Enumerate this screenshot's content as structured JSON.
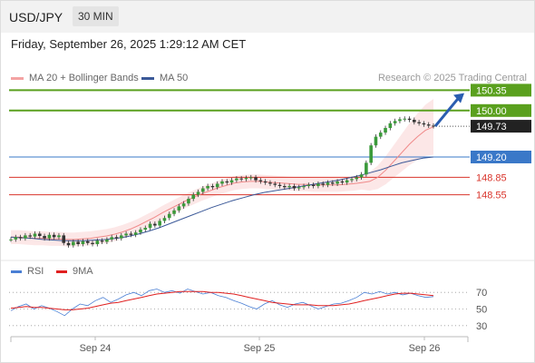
{
  "header": {
    "symbol": "USD/JPY",
    "timeframe": "30 MIN"
  },
  "datetime": "Friday, September 26, 2025 1:29:12 AM CET",
  "legend": {
    "ma20": "MA 20 + Bollinger Bands",
    "ma50": "MA 50"
  },
  "credit": "Research © 2025 Trading Central",
  "rsi_legend": {
    "rsi": "RSI",
    "ma": "9MA"
  },
  "colors": {
    "resistance": "#5aa01e",
    "current": "#222222",
    "pivot": "#3a78c8",
    "support": "#d9342b",
    "ma20": "#f08a8a",
    "ma50": "#3b5998",
    "rsi": "#4a7fd4",
    "rsi_ma": "#e02020",
    "arrow": "#2a5db0"
  },
  "chart_data": [
    {
      "type": "candlestick",
      "title": "USD/JPY",
      "timeframe": "30 MIN",
      "ylim": [
        147.45,
        150.45
      ],
      "x_ticks": [
        "Sep 24",
        "Sep 25",
        "Sep 26"
      ],
      "levels": [
        {
          "value": 150.35,
          "label": "150.35",
          "kind": "resistance"
        },
        {
          "value": 150.0,
          "label": "150.00",
          "kind": "resistance"
        },
        {
          "value": 149.73,
          "label": "149.73",
          "kind": "current"
        },
        {
          "value": 149.2,
          "label": "149.20",
          "kind": "pivot"
        },
        {
          "value": 148.85,
          "label": "148.85",
          "kind": "support"
        },
        {
          "value": 148.55,
          "label": "148.55",
          "kind": "support"
        }
      ],
      "series": [
        {
          "name": "MA 20 + Bollinger Bands"
        },
        {
          "name": "MA 50"
        }
      ],
      "closes": [
        147.78,
        147.82,
        147.8,
        147.85,
        147.83,
        147.88,
        147.84,
        147.8,
        147.86,
        147.82,
        147.85,
        147.72,
        147.68,
        147.74,
        147.7,
        147.75,
        147.72,
        147.7,
        147.76,
        147.74,
        147.78,
        147.82,
        147.8,
        147.85,
        147.88,
        147.86,
        147.9,
        147.95,
        147.98,
        148.05,
        148.02,
        148.1,
        148.15,
        148.22,
        148.28,
        148.35,
        148.4,
        148.48,
        148.55,
        148.6,
        148.66,
        148.7,
        148.68,
        148.74,
        148.78,
        148.76,
        148.8,
        148.83,
        148.82,
        148.84,
        148.85,
        148.8,
        148.78,
        148.76,
        148.74,
        148.72,
        148.7,
        148.68,
        148.7,
        148.66,
        148.68,
        148.7,
        148.72,
        148.7,
        148.74,
        148.72,
        148.76,
        148.74,
        148.78,
        148.76,
        148.8,
        148.82,
        148.85,
        148.9,
        149.1,
        149.4,
        149.55,
        149.62,
        149.7,
        149.78,
        149.82,
        149.85,
        149.86,
        149.84,
        149.8,
        149.78,
        149.76,
        149.74,
        149.73
      ],
      "ma20": [
        147.82,
        147.82,
        147.81,
        147.8,
        147.8,
        147.79,
        147.79,
        147.78,
        147.78,
        147.79,
        147.8,
        147.82,
        147.84,
        147.87,
        147.91,
        147.96,
        148.02,
        148.09,
        148.16,
        148.24,
        148.31,
        148.38,
        148.45,
        148.51,
        148.57,
        148.62,
        148.67,
        148.71,
        148.75,
        148.77,
        148.78,
        148.78,
        148.77,
        148.76,
        148.75,
        148.74,
        148.73,
        148.73,
        148.72,
        148.72,
        148.72,
        148.72,
        148.73,
        148.74,
        148.76,
        148.78,
        148.85,
        148.97,
        149.12,
        149.27,
        149.42,
        149.55,
        149.66,
        149.72
      ],
      "ma50": [
        147.82,
        147.81,
        147.8,
        147.78,
        147.77,
        147.76,
        147.76,
        147.76,
        147.77,
        147.78,
        147.8,
        147.83,
        147.87,
        147.92,
        147.98,
        148.05,
        148.12,
        148.19,
        148.26,
        148.33,
        148.39,
        148.45,
        148.5,
        148.55,
        148.59,
        148.62,
        148.65,
        148.68,
        148.71,
        148.74,
        148.77,
        148.8,
        148.84,
        148.88,
        148.93,
        148.98,
        149.04,
        149.1,
        149.14,
        149.18,
        149.2
      ]
    },
    {
      "type": "line",
      "title": "RSI",
      "ylim": [
        20,
        80
      ],
      "y_ticks": [
        70,
        50,
        30
      ],
      "series": [
        {
          "name": "RSI",
          "values": [
            48,
            53,
            56,
            50,
            54,
            51,
            47,
            42,
            50,
            56,
            54,
            60,
            64,
            58,
            62,
            67,
            70,
            66,
            72,
            74,
            70,
            72,
            69,
            74,
            71,
            68,
            70,
            66,
            64,
            60,
            57,
            53,
            50,
            56,
            60,
            55,
            52,
            56,
            58,
            54,
            50,
            53,
            56,
            57,
            60,
            64,
            70,
            68,
            71,
            68,
            70,
            67,
            69,
            66,
            64,
            65
          ]
        },
        {
          "name": "9MA",
          "values": [
            51,
            52,
            53,
            52,
            52,
            51,
            50,
            49,
            49,
            50,
            51,
            53,
            55,
            57,
            58,
            60,
            62,
            64,
            66,
            68,
            69,
            70,
            71,
            71,
            71,
            71,
            70,
            70,
            69,
            68,
            66,
            64,
            62,
            60,
            58,
            57,
            56,
            55,
            55,
            55,
            54,
            54,
            54,
            55,
            56,
            58,
            60,
            62,
            64,
            66,
            68,
            69,
            69,
            68,
            67,
            66
          ]
        }
      ]
    }
  ]
}
